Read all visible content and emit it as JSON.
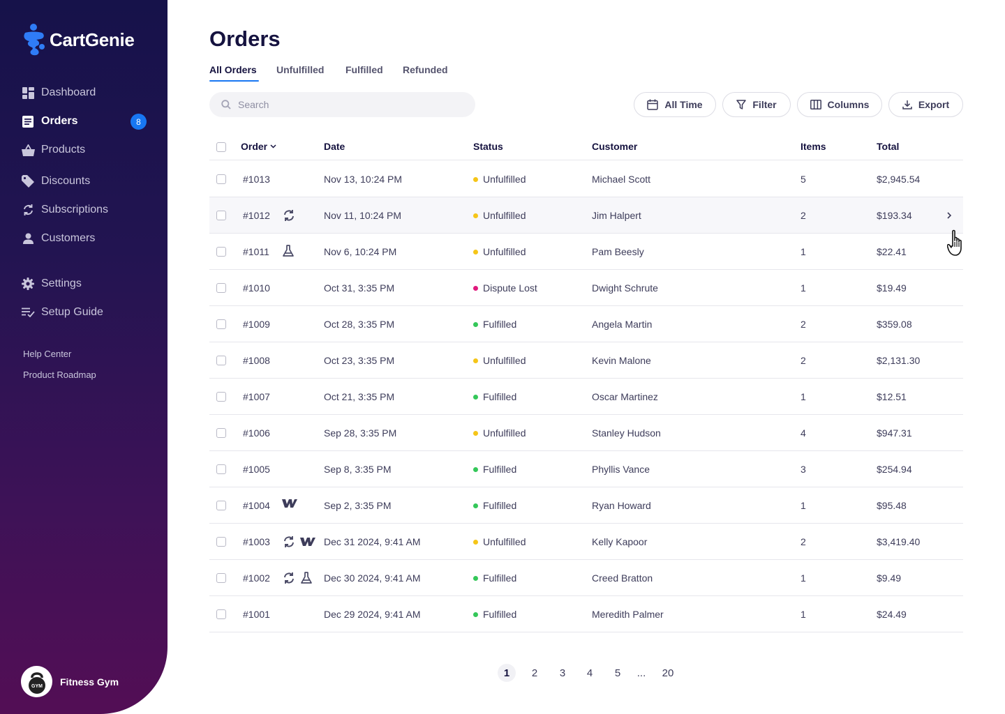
{
  "app": {
    "name": "CartGenie",
    "brand_color": "#1877f2",
    "sidebar_gradient": [
      "#16124a",
      "#530e55"
    ]
  },
  "sidebar": {
    "items": [
      {
        "label": "Dashboard",
        "icon": "dashboard-icon"
      },
      {
        "label": "Orders",
        "icon": "orders-icon",
        "badge": "8",
        "active": true
      },
      {
        "label": "Products",
        "icon": "basket-icon"
      },
      {
        "label": "Discounts",
        "icon": "tag-icon"
      },
      {
        "label": "Subscriptions",
        "icon": "refresh-icon"
      },
      {
        "label": "Customers",
        "icon": "person-icon"
      },
      {
        "label": "Settings",
        "icon": "gear-icon"
      },
      {
        "label": "Setup Guide",
        "icon": "checklist-icon"
      }
    ],
    "links": [
      "Help Center",
      "Product Roadmap"
    ],
    "account": {
      "name": "Fitness Gym",
      "avatar_text": "GYM"
    }
  },
  "page": {
    "title": "Orders",
    "tabs": [
      "All Orders",
      "Unfulfilled",
      "Fulfilled",
      "Refunded"
    ],
    "active_tab": "All Orders"
  },
  "toolbar": {
    "search_placeholder": "Search",
    "buttons": [
      {
        "label": "All Time",
        "icon": "calendar-icon"
      },
      {
        "label": "Filter",
        "icon": "filter-icon"
      },
      {
        "label": "Columns",
        "icon": "columns-icon"
      },
      {
        "label": "Export",
        "icon": "download-icon"
      }
    ]
  },
  "table": {
    "columns": [
      "Order",
      "Date",
      "Status",
      "Customer",
      "Items",
      "Total"
    ],
    "sort_column": "Order",
    "status_colors": {
      "Unfulfilled": "#f5c518",
      "Fulfilled": "#34c759",
      "Dispute Lost": "#e0197d"
    },
    "rows": [
      {
        "order": "#1013",
        "icons": [],
        "date": "Nov 13, 10:24 PM",
        "status": "Unfulfilled",
        "customer": "Michael Scott",
        "items": "5",
        "total": "$2,945.54"
      },
      {
        "order": "#1012",
        "icons": [
          "subscription-icon"
        ],
        "date": "Nov 11, 10:24 PM",
        "status": "Unfulfilled",
        "customer": "Jim Halpert",
        "items": "2",
        "total": "$193.34",
        "hovered": true
      },
      {
        "order": "#1011",
        "icons": [
          "flask-icon"
        ],
        "date": "Nov 6, 10:24 PM",
        "status": "Unfulfilled",
        "customer": "Pam Beesly",
        "items": "1",
        "total": "$22.41"
      },
      {
        "order": "#1010",
        "icons": [],
        "date": "Oct 31, 3:35 PM",
        "status": "Dispute Lost",
        "customer": "Dwight Schrute",
        "items": "1",
        "total": "$19.49"
      },
      {
        "order": "#1009",
        "icons": [],
        "date": "Oct 28, 3:35 PM",
        "status": "Fulfilled",
        "customer": "Angela Martin",
        "items": "2",
        "total": "$359.08"
      },
      {
        "order": "#1008",
        "icons": [],
        "date": "Oct 23, 3:35 PM",
        "status": "Unfulfilled",
        "customer": "Kevin Malone",
        "items": "2",
        "total": "$2,131.30"
      },
      {
        "order": "#1007",
        "icons": [],
        "date": "Oct 21, 3:35 PM",
        "status": "Fulfilled",
        "customer": "Oscar Martinez",
        "items": "1",
        "total": "$12.51"
      },
      {
        "order": "#1006",
        "icons": [],
        "date": "Sep 28, 3:35 PM",
        "status": "Unfulfilled",
        "customer": "Stanley Hudson",
        "items": "4",
        "total": "$947.31"
      },
      {
        "order": "#1005",
        "icons": [],
        "date": "Sep 8, 3:35 PM",
        "status": "Fulfilled",
        "customer": "Phyllis Vance",
        "items": "3",
        "total": "$254.94"
      },
      {
        "order": "#1004",
        "icons": [
          "webflow-icon"
        ],
        "date": "Sep 2, 3:35 PM",
        "status": "Fulfilled",
        "customer": "Ryan Howard",
        "items": "1",
        "total": "$95.48"
      },
      {
        "order": "#1003",
        "icons": [
          "subscription-icon",
          "webflow-icon"
        ],
        "date": "Dec 31 2024, 9:41 AM",
        "status": "Unfulfilled",
        "customer": "Kelly Kapoor",
        "items": "2",
        "total": "$3,419.40"
      },
      {
        "order": "#1002",
        "icons": [
          "subscription-icon",
          "flask-icon"
        ],
        "date": "Dec 30 2024, 9:41 AM",
        "status": "Fulfilled",
        "customer": "Creed Bratton",
        "items": "1",
        "total": "$9.49"
      },
      {
        "order": "#1001",
        "icons": [],
        "date": "Dec 29 2024, 9:41 AM",
        "status": "Fulfilled",
        "customer": "Meredith Palmer",
        "items": "1",
        "total": "$24.49"
      }
    ]
  },
  "pagination": {
    "pages": [
      "1",
      "2",
      "3",
      "4",
      "5",
      "...",
      "20"
    ],
    "current": "1"
  }
}
